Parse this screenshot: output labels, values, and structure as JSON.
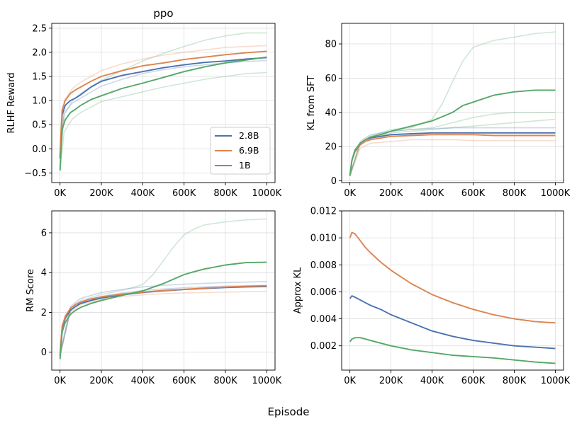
{
  "figure": {
    "xlabel": "Episode"
  },
  "colors": {
    "2.8B": "#4c72b0",
    "6.9B": "#dd8452",
    "1B": "#55a868"
  },
  "chart_data": [
    {
      "type": "line",
      "title": "ppo",
      "xlabel": "",
      "ylabel": "RLHF Reward",
      "xlim": [
        -40000,
        1040000
      ],
      "ylim": [
        -0.7,
        2.6
      ],
      "xticks": [
        0,
        200000,
        400000,
        600000,
        800000,
        1000000
      ],
      "xticklabels": [
        "0K",
        "200K",
        "400K",
        "600K",
        "800K",
        "1000K"
      ],
      "yticks": [
        -0.5,
        0.0,
        0.5,
        1.0,
        1.5,
        2.0,
        2.5
      ],
      "yticklabels": [
        "−0.5",
        "0.0",
        "0.5",
        "1.0",
        "1.5",
        "2.0",
        "2.5"
      ],
      "legend": {
        "placement": "lower right",
        "entries": [
          "2.8B",
          "6.9B",
          "1B"
        ]
      },
      "grid": true,
      "series": [
        {
          "name": "2.8B",
          "x": [
            0,
            10000,
            25000,
            50000,
            75000,
            100000,
            150000,
            200000,
            300000,
            400000,
            500000,
            600000,
            700000,
            800000,
            900000,
            1000000
          ],
          "y": [
            -0.2,
            0.7,
            0.9,
            1.0,
            1.05,
            1.12,
            1.28,
            1.4,
            1.52,
            1.6,
            1.68,
            1.74,
            1.79,
            1.82,
            1.86,
            1.89
          ]
        },
        {
          "name": "6.9B",
          "x": [
            0,
            10000,
            25000,
            50000,
            75000,
            100000,
            150000,
            200000,
            300000,
            400000,
            500000,
            600000,
            700000,
            800000,
            900000,
            1000000
          ],
          "y": [
            -0.1,
            0.8,
            1.0,
            1.15,
            1.22,
            1.28,
            1.4,
            1.5,
            1.62,
            1.72,
            1.78,
            1.85,
            1.9,
            1.95,
            1.99,
            2.02
          ]
        },
        {
          "name": "1B",
          "x": [
            0,
            10000,
            25000,
            50000,
            75000,
            100000,
            150000,
            200000,
            300000,
            400000,
            500000,
            600000,
            700000,
            800000,
            900000,
            1000000
          ],
          "y": [
            -0.45,
            0.4,
            0.6,
            0.75,
            0.82,
            0.9,
            1.02,
            1.1,
            1.25,
            1.36,
            1.48,
            1.6,
            1.7,
            1.78,
            1.84,
            1.9
          ]
        }
      ],
      "faint_runs": [
        {
          "name": "1B",
          "x": [
            0,
            20000,
            60000,
            100000,
            200000,
            300000,
            400000,
            500000,
            600000,
            700000,
            800000,
            900000,
            1000000
          ],
          "y": [
            -0.3,
            0.7,
            1.0,
            1.15,
            1.42,
            1.62,
            1.82,
            1.98,
            2.12,
            2.25,
            2.34,
            2.4,
            2.4
          ]
        },
        {
          "name": "1B",
          "x": [
            0,
            20000,
            60000,
            100000,
            200000,
            300000,
            400000,
            500000,
            600000,
            700000,
            800000,
            900000,
            1000000
          ],
          "y": [
            -0.45,
            0.35,
            0.62,
            0.75,
            0.98,
            1.08,
            1.18,
            1.28,
            1.36,
            1.44,
            1.5,
            1.56,
            1.58
          ]
        },
        {
          "name": "6.9B",
          "x": [
            0,
            20000,
            60000,
            100000,
            200000,
            300000,
            400000,
            500000,
            600000,
            700000,
            800000,
            900000,
            1000000
          ],
          "y": [
            -0.1,
            1.0,
            1.25,
            1.38,
            1.62,
            1.76,
            1.86,
            1.94,
            2.0,
            2.05,
            2.1,
            2.12,
            2.14
          ]
        },
        {
          "name": "2.8B",
          "x": [
            0,
            20000,
            60000,
            100000,
            200000,
            300000,
            400000,
            500000,
            600000,
            700000,
            800000,
            900000,
            1000000
          ],
          "y": [
            -0.2,
            0.75,
            0.95,
            1.05,
            1.3,
            1.44,
            1.56,
            1.64,
            1.7,
            1.74,
            1.78,
            1.81,
            1.83
          ]
        }
      ]
    },
    {
      "type": "line",
      "title": "",
      "xlabel": "",
      "ylabel": "KL from SFT",
      "xlim": [
        -40000,
        1040000
      ],
      "ylim": [
        -1,
        92
      ],
      "xticks": [
        0,
        200000,
        400000,
        600000,
        800000,
        1000000
      ],
      "xticklabels": [
        "0K",
        "200K",
        "400K",
        "600K",
        "800K",
        "1000K"
      ],
      "yticks": [
        0,
        20,
        40,
        60,
        80
      ],
      "yticklabels": [
        "0",
        "20",
        "40",
        "60",
        "80"
      ],
      "grid": true,
      "series": [
        {
          "name": "2.8B",
          "x": [
            0,
            10000,
            25000,
            50000,
            75000,
            100000,
            150000,
            200000,
            300000,
            400000,
            500000,
            600000,
            700000,
            800000,
            900000,
            1000000
          ],
          "y": [
            3,
            12,
            18,
            22,
            24,
            25,
            26,
            27,
            27.5,
            28,
            28,
            28,
            28,
            28,
            28,
            28
          ]
        },
        {
          "name": "6.9B",
          "x": [
            0,
            10000,
            25000,
            50000,
            75000,
            100000,
            150000,
            200000,
            300000,
            400000,
            500000,
            600000,
            700000,
            800000,
            900000,
            1000000
          ],
          "y": [
            3,
            12,
            17,
            21,
            23,
            24,
            25,
            26,
            26.5,
            27,
            27,
            27,
            26.5,
            26.5,
            26.5,
            26.5
          ]
        },
        {
          "name": "1B",
          "x": [
            0,
            10000,
            25000,
            50000,
            75000,
            100000,
            150000,
            200000,
            300000,
            400000,
            500000,
            550000,
            600000,
            700000,
            800000,
            900000,
            1000000
          ],
          "y": [
            3,
            12,
            18,
            22,
            24,
            25.5,
            27,
            29,
            32,
            35,
            40,
            44,
            46,
            50,
            52,
            53,
            53
          ]
        }
      ],
      "faint_runs": [
        {
          "name": "1B",
          "x": [
            0,
            50000,
            100000,
            200000,
            300000,
            400000,
            450000,
            500000,
            550000,
            600000,
            650000,
            700000,
            800000,
            900000,
            1000000
          ],
          "y": [
            3,
            22,
            26,
            30,
            31,
            36,
            45,
            58,
            70,
            78,
            80,
            82,
            84,
            86,
            87
          ]
        },
        {
          "name": "1B",
          "x": [
            0,
            50000,
            100000,
            200000,
            300000,
            400000,
            500000,
            600000,
            700000,
            800000,
            900000,
            1000000
          ],
          "y": [
            3,
            22,
            26,
            29,
            30,
            31,
            34,
            37,
            39,
            40,
            40,
            40
          ]
        },
        {
          "name": "1B",
          "x": [
            0,
            50000,
            100000,
            200000,
            300000,
            400000,
            500000,
            600000,
            700000,
            800000,
            900000,
            1000000
          ],
          "y": [
            3,
            21,
            25,
            28,
            29,
            30,
            31,
            32,
            33,
            34,
            35,
            36
          ]
        },
        {
          "name": "2.8B",
          "x": [
            0,
            50000,
            100000,
            200000,
            300000,
            400000,
            500000,
            600000,
            700000,
            800000,
            900000,
            1000000
          ],
          "y": [
            3,
            23,
            27,
            29,
            30,
            30.5,
            31,
            31,
            31,
            31,
            31,
            31
          ]
        },
        {
          "name": "6.9B",
          "x": [
            0,
            50000,
            100000,
            200000,
            300000,
            400000,
            500000,
            600000,
            700000,
            800000,
            900000,
            1000000
          ],
          "y": [
            3,
            19,
            22,
            23,
            24,
            24,
            24,
            23.5,
            23.5,
            23.5,
            23.5,
            23.5
          ]
        }
      ]
    },
    {
      "type": "line",
      "title": "",
      "xlabel": "",
      "ylabel": "RM Score",
      "xlim": [
        -40000,
        1040000
      ],
      "ylim": [
        -0.9,
        7.1
      ],
      "xticks": [
        0,
        200000,
        400000,
        600000,
        800000,
        1000000
      ],
      "xticklabels": [
        "0K",
        "200K",
        "400K",
        "600K",
        "800K",
        "1000K"
      ],
      "yticks": [
        0,
        2,
        4,
        6
      ],
      "yticklabels": [
        "0",
        "2",
        "4",
        "6"
      ],
      "grid": true,
      "series": [
        {
          "name": "2.8B",
          "x": [
            0,
            10000,
            25000,
            50000,
            75000,
            100000,
            150000,
            200000,
            300000,
            400000,
            500000,
            600000,
            700000,
            800000,
            900000,
            1000000
          ],
          "y": [
            -0.2,
            1.2,
            1.7,
            2.1,
            2.3,
            2.45,
            2.6,
            2.72,
            2.88,
            3.0,
            3.08,
            3.15,
            3.2,
            3.25,
            3.28,
            3.3
          ]
        },
        {
          "name": "6.9B",
          "x": [
            0,
            10000,
            25000,
            50000,
            75000,
            100000,
            150000,
            200000,
            300000,
            400000,
            500000,
            600000,
            700000,
            800000,
            900000,
            1000000
          ],
          "y": [
            -0.1,
            1.3,
            1.8,
            2.2,
            2.4,
            2.52,
            2.68,
            2.78,
            2.92,
            3.02,
            3.1,
            3.16,
            3.22,
            3.27,
            3.31,
            3.34
          ]
        },
        {
          "name": "1B",
          "x": [
            0,
            10000,
            25000,
            50000,
            75000,
            100000,
            150000,
            200000,
            300000,
            400000,
            500000,
            600000,
            650000,
            700000,
            800000,
            900000,
            1000000
          ],
          "y": [
            -0.35,
            1.0,
            1.5,
            1.9,
            2.1,
            2.25,
            2.45,
            2.6,
            2.85,
            3.08,
            3.45,
            3.9,
            4.05,
            4.18,
            4.38,
            4.5,
            4.52
          ]
        }
      ],
      "faint_runs": [
        {
          "name": "1B",
          "x": [
            0,
            50000,
            100000,
            200000,
            300000,
            400000,
            450000,
            500000,
            550000,
            600000,
            650000,
            700000,
            800000,
            900000,
            1000000
          ],
          "y": [
            -0.2,
            2.2,
            2.6,
            2.9,
            3.1,
            3.4,
            3.9,
            4.6,
            5.3,
            5.9,
            6.2,
            6.4,
            6.55,
            6.65,
            6.7
          ]
        },
        {
          "name": "2.8B",
          "x": [
            0,
            50000,
            100000,
            200000,
            300000,
            400000,
            500000,
            600000,
            700000,
            800000,
            900000,
            1000000
          ],
          "y": [
            -0.1,
            2.3,
            2.7,
            3.0,
            3.15,
            3.28,
            3.36,
            3.42,
            3.46,
            3.5,
            3.52,
            3.55
          ]
        },
        {
          "name": "6.9B",
          "x": [
            0,
            50000,
            100000,
            200000,
            300000,
            400000,
            500000,
            600000,
            700000,
            800000,
            900000,
            1000000
          ],
          "y": [
            -0.1,
            2.0,
            2.4,
            2.65,
            2.8,
            2.88,
            2.94,
            2.98,
            3.0,
            3.02,
            3.04,
            3.05
          ]
        },
        {
          "name": "2.8B",
          "x": [
            0,
            50000,
            100000,
            200000,
            300000,
            400000,
            500000,
            600000,
            700000,
            800000,
            900000,
            1000000
          ],
          "y": [
            -0.2,
            2.1,
            2.5,
            2.8,
            2.98,
            3.1,
            3.18,
            3.24,
            3.28,
            3.32,
            3.34,
            3.36
          ]
        }
      ]
    },
    {
      "type": "line",
      "title": "",
      "xlabel": "",
      "ylabel": "Approx KL",
      "xlim": [
        -40000,
        1040000
      ],
      "ylim": [
        0.0002,
        0.012
      ],
      "xticks": [
        0,
        200000,
        400000,
        600000,
        800000,
        1000000
      ],
      "xticklabels": [
        "0K",
        "200K",
        "400K",
        "600K",
        "800K",
        "1000K"
      ],
      "yticks": [
        0.002,
        0.004,
        0.006,
        0.008,
        0.01,
        0.012
      ],
      "yticklabels": [
        "0.002",
        "0.004",
        "0.006",
        "0.008",
        "0.010",
        "0.012"
      ],
      "grid": true,
      "series": [
        {
          "name": "2.8B",
          "x": [
            0,
            10000,
            25000,
            50000,
            75000,
            100000,
            150000,
            200000,
            300000,
            400000,
            500000,
            600000,
            700000,
            800000,
            900000,
            1000000
          ],
          "y": [
            0.0055,
            0.0057,
            0.0056,
            0.0054,
            0.0052,
            0.005,
            0.0047,
            0.0043,
            0.0037,
            0.0031,
            0.0027,
            0.0024,
            0.0022,
            0.002,
            0.0019,
            0.0018
          ]
        },
        {
          "name": "6.9B",
          "x": [
            0,
            10000,
            25000,
            50000,
            75000,
            100000,
            150000,
            200000,
            300000,
            400000,
            500000,
            600000,
            700000,
            800000,
            900000,
            1000000
          ],
          "y": [
            0.01,
            0.0104,
            0.0103,
            0.0098,
            0.0093,
            0.0089,
            0.0082,
            0.0076,
            0.0066,
            0.0058,
            0.0052,
            0.0047,
            0.0043,
            0.004,
            0.0038,
            0.0037
          ]
        },
        {
          "name": "1B",
          "x": [
            0,
            10000,
            25000,
            50000,
            75000,
            100000,
            150000,
            200000,
            300000,
            400000,
            500000,
            600000,
            700000,
            800000,
            900000,
            1000000
          ],
          "y": [
            0.0023,
            0.0025,
            0.0026,
            0.0026,
            0.0025,
            0.0024,
            0.0022,
            0.002,
            0.0017,
            0.0015,
            0.0013,
            0.0012,
            0.0011,
            0.00095,
            0.0008,
            0.0007
          ]
        }
      ],
      "faint_runs": []
    }
  ]
}
